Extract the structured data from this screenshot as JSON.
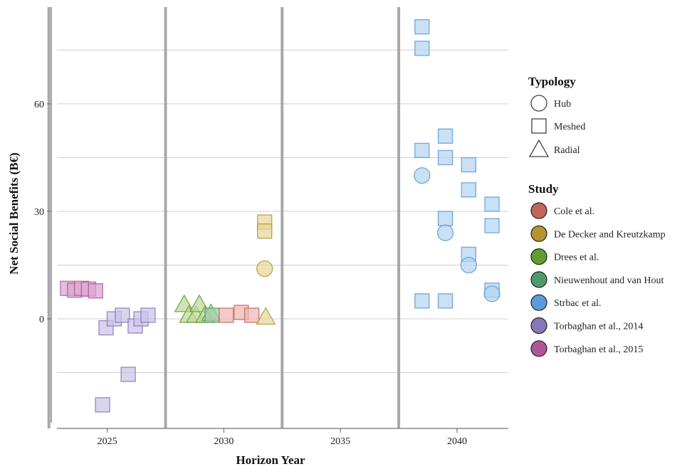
{
  "chart_data": {
    "type": "scatter",
    "xlabel": "Horizon Year",
    "ylabel": "Net Social Benefits (B€)",
    "xlim": [
      2022.6,
      2042.2
    ],
    "ylim": [
      -29,
      87
    ],
    "x_ticks": [
      2025,
      2030,
      2035,
      2040
    ],
    "x_tick_labels": [
      "2025",
      "2030",
      "2035",
      "2040"
    ],
    "y_ticks": [
      0,
      30,
      60
    ],
    "y_tick_labels": [
      "0",
      "30",
      "60"
    ],
    "y_minor_gridlines": [
      -15,
      15,
      45,
      75
    ],
    "vertical_separators": [
      2022.5,
      2027.5,
      2032.5,
      2037.5
    ],
    "grid": true,
    "legend_position": "right",
    "typology_legend": {
      "title": "Typology",
      "items": [
        {
          "label": "Hub",
          "shape": "circle"
        },
        {
          "label": "Meshed",
          "shape": "square"
        },
        {
          "label": "Radial",
          "shape": "triangle"
        }
      ]
    },
    "study_legend": {
      "title": "Study",
      "items": [
        {
          "label": "Cole et al.",
          "color": "#c4655c"
        },
        {
          "label": "De Decker and Kreutzkamp",
          "color": "#b3942e"
        },
        {
          "label": "Drees et al.",
          "color": "#5f9e2f"
        },
        {
          "label": "Nieuwenhout and van Hout",
          "color": "#4f9a6b"
        },
        {
          "label": "Strbac et al.",
          "color": "#5a9bdb"
        },
        {
          "label": "Torbaghan et al., 2014",
          "color": "#8677b9"
        },
        {
          "label": "Torbaghan et al., 2015",
          "color": "#b0559a"
        }
      ]
    },
    "series": [
      {
        "name": "Torbaghan et al., 2015",
        "color": "#b0559a",
        "fill": "#d9a6cf",
        "points": [
          {
            "x": 2023.3,
            "y": 8.5,
            "shape": "square"
          },
          {
            "x": 2023.6,
            "y": 8.0,
            "shape": "square"
          },
          {
            "x": 2023.9,
            "y": 8.5,
            "shape": "square"
          },
          {
            "x": 2024.2,
            "y": 8.3,
            "shape": "square"
          },
          {
            "x": 2024.5,
            "y": 7.8,
            "shape": "square"
          }
        ]
      },
      {
        "name": "Torbaghan et al., 2014",
        "color": "#8677b9",
        "fill": "#cbc3e6",
        "points": [
          {
            "x": 2024.8,
            "y": -24,
            "shape": "square"
          },
          {
            "x": 2024.95,
            "y": -2.5,
            "shape": "square"
          },
          {
            "x": 2025.3,
            "y": 0,
            "shape": "square"
          },
          {
            "x": 2025.65,
            "y": 1.0,
            "shape": "square"
          },
          {
            "x": 2025.9,
            "y": -15.5,
            "shape": "square"
          },
          {
            "x": 2026.2,
            "y": -2.0,
            "shape": "square"
          },
          {
            "x": 2026.45,
            "y": 0,
            "shape": "square"
          },
          {
            "x": 2026.75,
            "y": 1.0,
            "shape": "square"
          }
        ]
      },
      {
        "name": "Drees et al.",
        "color": "#5f9e2f",
        "fill": "#bfd89a",
        "points": [
          {
            "x": 2028.3,
            "y": 4.0,
            "shape": "triangle"
          },
          {
            "x": 2028.5,
            "y": 1.0,
            "shape": "triangle"
          },
          {
            "x": 2028.8,
            "y": 1.0,
            "shape": "triangle"
          },
          {
            "x": 2028.95,
            "y": 4.0,
            "shape": "triangle"
          },
          {
            "x": 2029.2,
            "y": 1.0,
            "shape": "triangle"
          },
          {
            "x": 2029.45,
            "y": 1.5,
            "shape": "triangle"
          }
        ]
      },
      {
        "name": "Nieuwenhout and van Hout",
        "color": "#4f9a6b",
        "fill": "#9ccab0",
        "points": [
          {
            "x": 2029.5,
            "y": 1.0,
            "shape": "square"
          }
        ]
      },
      {
        "name": "Cole et al.",
        "color": "#c4655c",
        "fill": "#ebb8b3",
        "points": [
          {
            "x": 2030.1,
            "y": 1.0,
            "shape": "square"
          },
          {
            "x": 2030.75,
            "y": 1.8,
            "shape": "square"
          },
          {
            "x": 2031.2,
            "y": 1.0,
            "shape": "square"
          }
        ]
      },
      {
        "name": "De Decker and Kreutzkamp",
        "color": "#b3942e",
        "fill": "#e6d79b",
        "points": [
          {
            "x": 2031.75,
            "y": 27.0,
            "shape": "square"
          },
          {
            "x": 2031.75,
            "y": 24.5,
            "shape": "square"
          },
          {
            "x": 2031.75,
            "y": 14.0,
            "shape": "circle"
          },
          {
            "x": 2031.8,
            "y": 0.5,
            "shape": "triangle"
          }
        ]
      },
      {
        "name": "Strbac et al.",
        "color": "#5a9bdb",
        "fill": "#b4d4f1",
        "points": [
          {
            "x": 2038.5,
            "y": 81.5,
            "shape": "square"
          },
          {
            "x": 2038.5,
            "y": 75.5,
            "shape": "square"
          },
          {
            "x": 2038.5,
            "y": 47.0,
            "shape": "square"
          },
          {
            "x": 2038.5,
            "y": 40.0,
            "shape": "circle"
          },
          {
            "x": 2038.5,
            "y": 5.0,
            "shape": "square"
          },
          {
            "x": 2039.5,
            "y": 51.0,
            "shape": "square"
          },
          {
            "x": 2039.5,
            "y": 45.0,
            "shape": "square"
          },
          {
            "x": 2039.5,
            "y": 28.0,
            "shape": "square"
          },
          {
            "x": 2039.5,
            "y": 24.0,
            "shape": "circle"
          },
          {
            "x": 2039.5,
            "y": 5.0,
            "shape": "square"
          },
          {
            "x": 2040.5,
            "y": 43.0,
            "shape": "square"
          },
          {
            "x": 2040.5,
            "y": 36.0,
            "shape": "square"
          },
          {
            "x": 2040.5,
            "y": 18.0,
            "shape": "square"
          },
          {
            "x": 2040.5,
            "y": 15.0,
            "shape": "circle"
          },
          {
            "x": 2041.5,
            "y": 32.0,
            "shape": "square"
          },
          {
            "x": 2041.5,
            "y": 26.0,
            "shape": "square"
          },
          {
            "x": 2041.5,
            "y": 8.0,
            "shape": "square"
          },
          {
            "x": 2041.5,
            "y": 7.0,
            "shape": "circle"
          }
        ]
      }
    ]
  }
}
